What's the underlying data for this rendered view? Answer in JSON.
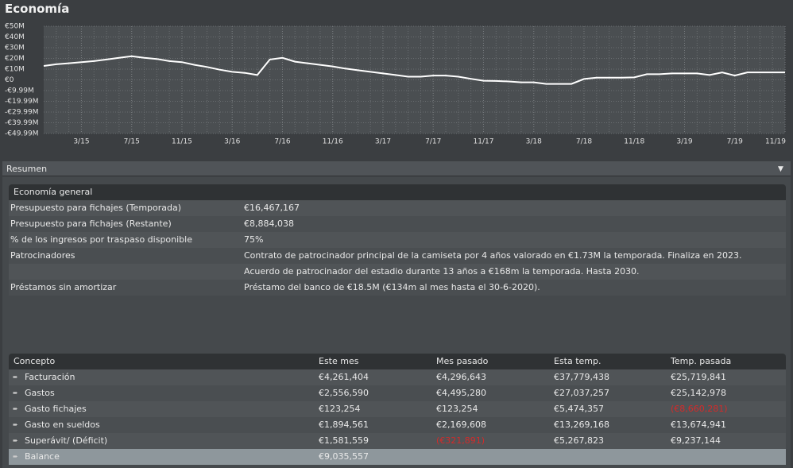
{
  "title": "Economía",
  "chart_data": {
    "type": "line",
    "x": [
      "12/14",
      "1/15",
      "2/15",
      "3/15",
      "4/15",
      "5/15",
      "6/15",
      "7/15",
      "8/15",
      "9/15",
      "10/15",
      "11/15",
      "12/15",
      "1/16",
      "2/16",
      "3/16",
      "4/16",
      "5/16",
      "6/16",
      "7/16",
      "8/16",
      "9/16",
      "10/16",
      "11/16",
      "12/16",
      "1/17",
      "2/17",
      "3/17",
      "4/17",
      "5/17",
      "6/17",
      "7/17",
      "8/17",
      "9/17",
      "10/17",
      "11/17",
      "12/17",
      "1/18",
      "2/18",
      "3/18",
      "4/18",
      "5/18",
      "6/18",
      "7/18",
      "8/18",
      "9/18",
      "10/18",
      "11/18",
      "12/18",
      "1/19",
      "2/19",
      "3/19",
      "4/19",
      "5/19",
      "6/19",
      "7/19",
      "8/19",
      "9/19",
      "10/19",
      "11/19"
    ],
    "series": [
      {
        "color": "#ffffff",
        "values": [
          13,
          14.5,
          15.5,
          16.5,
          17.5,
          19,
          20.5,
          22,
          20.5,
          19.5,
          17.5,
          16.5,
          14,
          12,
          9.5,
          7.5,
          6.5,
          4.5,
          19,
          20.5,
          17,
          15.5,
          14,
          12.5,
          10.5,
          9,
          7.5,
          6,
          4.5,
          3,
          3,
          4,
          4,
          3,
          1,
          -0.8,
          -1,
          -1.5,
          -2.3,
          -2.3,
          -3.8,
          -3.8,
          -3.8,
          0.8,
          2,
          2,
          2,
          2.3,
          5.3,
          5.3,
          6,
          6,
          6,
          4.5,
          7,
          4,
          7,
          7,
          7,
          7
        ]
      }
    ],
    "xlim": [
      "12/14",
      "11/19"
    ],
    "xticks": [
      "3/15",
      "7/15",
      "11/15",
      "3/16",
      "7/16",
      "11/16",
      "3/17",
      "7/17",
      "11/17",
      "3/18",
      "7/18",
      "11/18",
      "3/19",
      "7/19",
      "11/19"
    ],
    "ylim": [
      -49.99,
      50
    ],
    "yticks": [
      {
        "value": 50,
        "label": "€50M"
      },
      {
        "value": 40,
        "label": "€40M"
      },
      {
        "value": 30,
        "label": "€30M"
      },
      {
        "value": 20,
        "label": "€20M"
      },
      {
        "value": 10,
        "label": "€10M"
      },
      {
        "value": 0,
        "label": "€0"
      },
      {
        "value": -9.99,
        "label": "-€9.99M"
      },
      {
        "value": -19.99,
        "label": "-€19.99M"
      },
      {
        "value": -29.99,
        "label": "-€29.99M"
      },
      {
        "value": -39.99,
        "label": "-€39.99M"
      },
      {
        "value": -49.99,
        "label": "-€49.99M"
      }
    ],
    "grid": true
  },
  "panel": {
    "title": "Resumen"
  },
  "general": {
    "title": "Economía general",
    "rows": [
      {
        "label": "Presupuesto para fichajes (Temporada)",
        "value": "€16,467,167"
      },
      {
        "label": "Presupuesto para fichajes (Restante)",
        "value": "€8,884,038"
      },
      {
        "label": "% de los ingresos por traspaso disponible",
        "value": "75%"
      },
      {
        "label": "Patrocinadores",
        "value": "Contrato de patrocinador principal de la camiseta por 4 años valorado en €1.73M la temporada. Finaliza en 2023."
      },
      {
        "value": "Acuerdo de patrocinador del estadio durante 13 años a €168m la temporada. Hasta 2030."
      },
      {
        "label": "Préstamos sin amortizar",
        "value": "Préstamo del banco de €18.5M (€134m al mes hasta el 30-6-2020)."
      }
    ]
  },
  "table": {
    "header": [
      "Concepto",
      "Este mes",
      "Mes pasado",
      "Esta temp.",
      "Temp. pasada"
    ],
    "rows": [
      [
        "Facturación",
        "€4,261,404",
        "€4,296,643",
        "€37,779,438",
        "€25,719,841"
      ],
      [
        "Gastos",
        "€2,556,590",
        "€4,495,280",
        "€27,037,257",
        "€25,142,978"
      ],
      [
        "Gasto fichajes",
        "€123,254",
        "€123,254",
        "€5,474,357",
        "(€8,660,281)"
      ],
      [
        "Gasto en sueldos",
        "€1,894,561",
        "€2,169,608",
        "€13,269,168",
        "€13,674,941"
      ],
      [
        "Superávit/ (Déficit)",
        "€1,581,559",
        "(€321,891)",
        "€5,267,823",
        "€9,237,144"
      ],
      [
        "Balance",
        "€9,035,557"
      ]
    ]
  }
}
